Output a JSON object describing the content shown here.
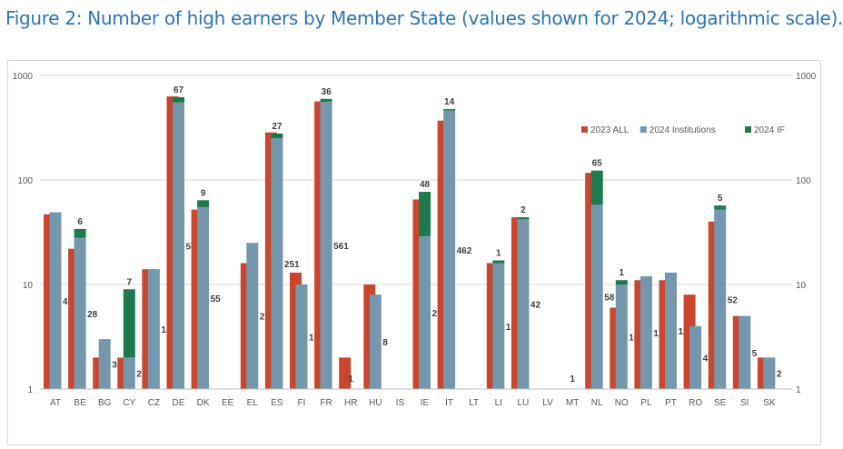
{
  "title": "Figure 2: Number of high earners by Member State (values shown for 2024; logarithmic scale).",
  "chart_data": {
    "type": "bar",
    "scale": "log",
    "ylim": [
      1,
      1000
    ],
    "yticks": [
      "1",
      "10",
      "100",
      "1000"
    ],
    "grid": true,
    "legend_position": "top-right",
    "categories": [
      "AT",
      "BE",
      "BG",
      "CY",
      "CZ",
      "DE",
      "DK",
      "EE",
      "EL",
      "ES",
      "FI",
      "FR",
      "HR",
      "HU",
      "IS",
      "IE",
      "IT",
      "LT",
      "LI",
      "LU",
      "LV",
      "MT",
      "NL",
      "NO",
      "PL",
      "PT",
      "RO",
      "SE",
      "SI",
      "SK"
    ],
    "series": [
      {
        "name": "2023 ALL",
        "color": "#c9472f",
        "values": [
          47,
          22,
          2,
          2,
          14,
          630,
          52,
          null,
          16,
          285,
          13,
          565,
          2,
          10,
          null,
          65,
          370,
          null,
          16,
          44,
          null,
          null,
          117,
          6,
          11,
          11,
          8,
          40,
          5,
          2
        ]
      },
      {
        "name": "2024 Institutions",
        "color": "#7597ae",
        "values": [
          49,
          28,
          3,
          2,
          14,
          553,
          55,
          null,
          25,
          251,
          10,
          561,
          1,
          8,
          null,
          29,
          462,
          null,
          16,
          42,
          null,
          1,
          58,
          10,
          12,
          13,
          4,
          52,
          5,
          2
        ]
      },
      {
        "name": "2024 IF",
        "color": "#1e7a4d",
        "stacked_on": "2024 Institutions",
        "values": [
          null,
          6,
          null,
          7,
          null,
          67,
          9,
          null,
          null,
          27,
          null,
          36,
          null,
          null,
          null,
          48,
          14,
          null,
          1,
          2,
          null,
          null,
          65,
          1,
          null,
          null,
          null,
          5,
          null,
          null
        ]
      }
    ]
  }
}
